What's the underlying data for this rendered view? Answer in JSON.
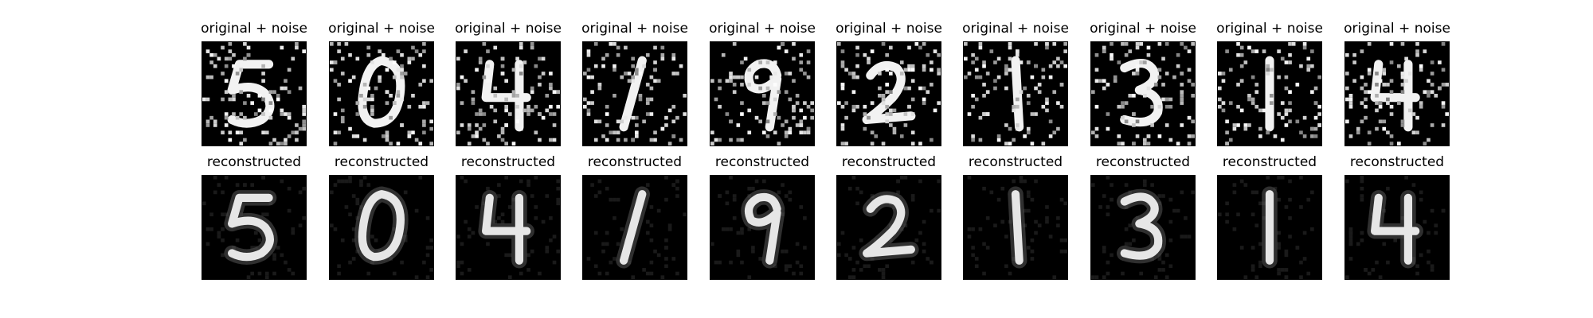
{
  "figure": {
    "rows": [
      {
        "id": "noisy",
        "title": "original + noise",
        "digits": [
          "5",
          "0",
          "4",
          "1",
          "9",
          "2",
          "1",
          "3",
          "1",
          "4"
        ]
      },
      {
        "id": "reconstructed",
        "title": "reconstructed",
        "digits": [
          "5",
          "0",
          "4",
          "1",
          "9",
          "2",
          "1",
          "3",
          "1",
          "4"
        ]
      }
    ]
  },
  "colors": {
    "background": "#ffffff",
    "image_bg": "#000000",
    "stroke_noisy": "#f2f2f2",
    "stroke_reconstructed": "#e6e6e6",
    "noise": "#ffffff",
    "recon_haze": "#1a1a1a"
  }
}
